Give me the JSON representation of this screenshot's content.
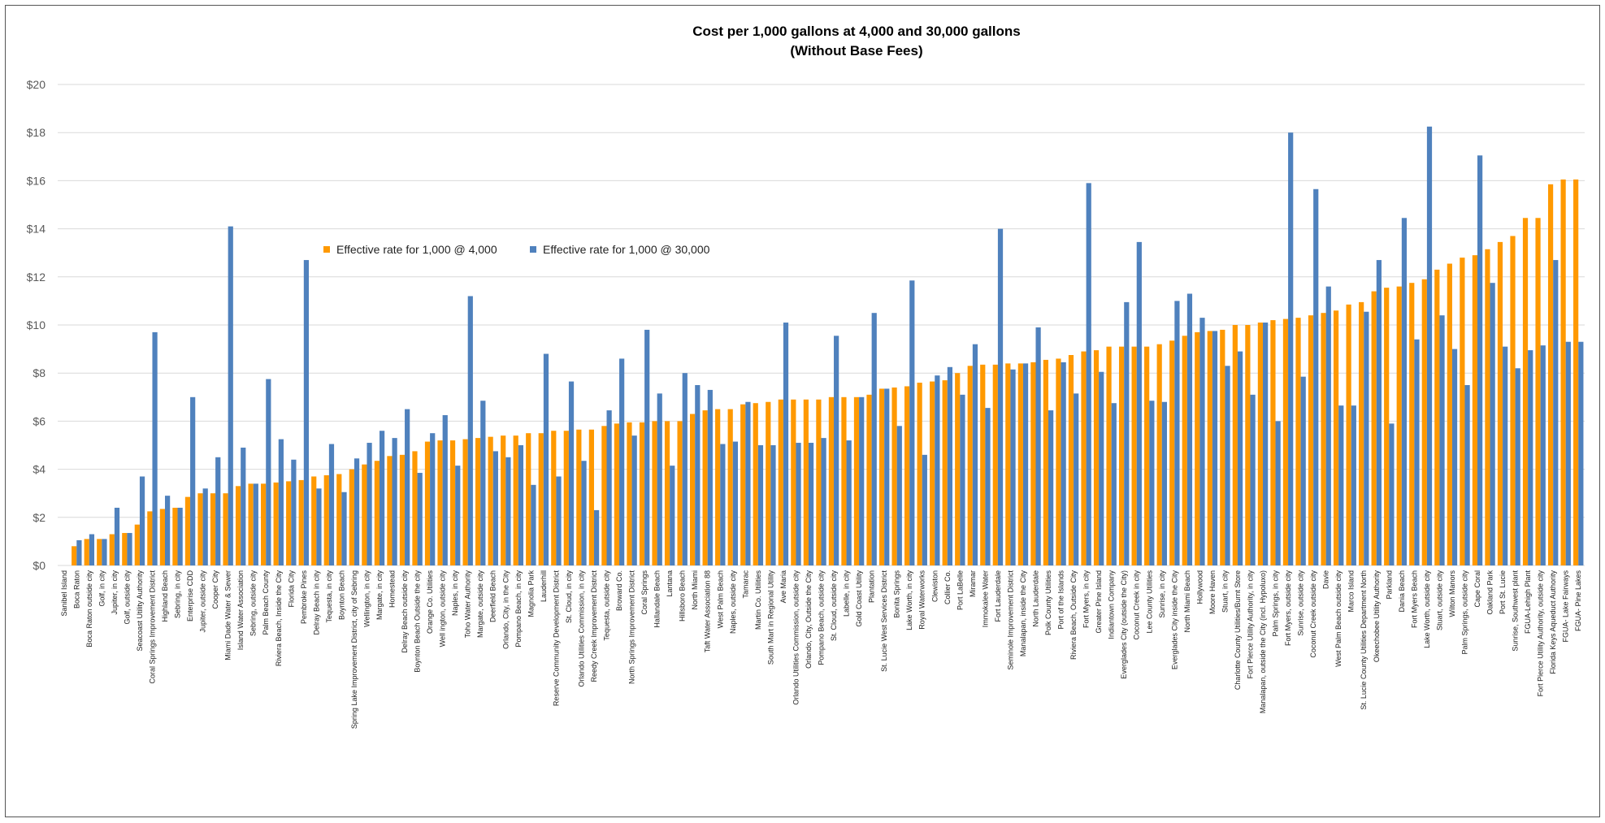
{
  "chart_data": {
    "type": "bar",
    "title": "Cost per 1,000 gallons at 4,000 and 30,000 gallons",
    "subtitle": "(Without Base Fees)",
    "xlabel": "",
    "ylabel": "",
    "ylim": [
      0,
      20
    ],
    "yticks": [
      "$0",
      "$2",
      "$4",
      "$6",
      "$8",
      "$10",
      "$12",
      "$14",
      "$16",
      "$18",
      "$20"
    ],
    "grid": true,
    "legend_position": "upper-left",
    "categories": [
      "Sanibel Island",
      "Boca Raton",
      "Boca Raton outside city",
      "Golf, in city",
      "Jupiter, in city",
      "Golf, outside city",
      "Seacoast Utility Authority",
      "Coral Springs Improvement District",
      "Highland Beach",
      "Sebring, in city",
      "Enterprise CDD",
      "Jupiter, outside city",
      "Cooper City",
      "Miami Dade Water & Sewer",
      "Island Water Association",
      "Sebring, outside city",
      "Palm Beach County",
      "Riviera Beach, Inside the City",
      "Florida City",
      "Pembroke Pines",
      "Delray Beach in city",
      "Tequesta, in city",
      "Boynton Beach",
      "Spring Lake Improvement District, city of Sebring",
      "Wellington, in city",
      "Margate, in city",
      "Homestead",
      "Delray Beach outside city",
      "Boynton Beach Outside the city",
      "Orange Co. Utilities",
      "Well ington, outside city",
      "Naples, in city",
      "Toho Water Authority",
      "Margate, outside city",
      "Deerfield Beach",
      "Orlando, City, in the City",
      "Pompano Beach, in city",
      "Magnolia Park",
      "Lauderhill",
      "Reserve Community Development District",
      "St. Cloud, in city",
      "Orlando Utilities Commission, in city",
      "Reedy Creek Improvement District",
      "Tequesta, outside city",
      "Broward Co.",
      "North Springs Improvement District",
      "Coral Springs",
      "Hallandale Beach",
      "Lantana",
      "Hillsboro Beach",
      "North Miami",
      "Taft Water Association 88",
      "West Palm Beach",
      "Naples, outside city",
      "Tamarac",
      "Martin Co. Utilities",
      "South Mart in Regional Utility",
      "Ave Maria",
      "Orlando Utilities Commission, outside city",
      "Orlando, City, Outside the City",
      "Pompano Beach, outside city",
      "St. Cloud, outside city",
      "Labelle, in city",
      "Gold Coast Utility",
      "Plantation",
      "St. Lucie West Services District",
      "Bonita Springs",
      "Lake Worth, in city",
      "Royal Waterworks",
      "Clewiston",
      "Collier Co.",
      "Port LaBelle",
      "Miramar",
      "Immokalee Water",
      "Fort Lauderdale",
      "Seminole Improvement District",
      "Manalapan, inside the City",
      "North Lauderdale",
      "Polk County Utilities",
      "Port of the Islands",
      "Riviera Beach, Outside City",
      "Fort Myers, in city",
      "Greater Pine Island",
      "Indiantown Company",
      "Everglades City (outside the City)",
      "Coconut Creek in city",
      "Lee County Utilities",
      "Sunrise, in city",
      "Everglades City inside the City",
      "North Miami Beach",
      "Hollywood",
      "Moore Haven",
      "Stuart, in city",
      "Charlotte County Utilities/Burnt Store",
      "Fort Pierce Utility Authority, in city",
      "Manalapan, outside the City (incl. Hypoluxo)",
      "Palm Springs, in city",
      "Fort Myers, outside city",
      "Sunrise, outside city",
      "Coconut Creek outside city",
      "Davie",
      "West Palm Beach outside city",
      "Marco Island",
      "St. Lucie County Utilities Department North",
      "Okeechobee Utility Authority",
      "Parkland",
      "Dania Beach",
      "Fort Myers Beach",
      "Lake Worth, outside city",
      "Stuart, outside city",
      "Wilton Manors",
      "Palm Springs, outside city",
      "Cape Coral",
      "Oakland Park",
      "Port St. Lucie",
      "Sunrise, Southwest plant",
      "FGUA-Lehigh Plant",
      "Fort Pierce Utility Authority, outside city",
      "Florida Keys Aqueduct Authority",
      "FGUA- Lake Fairways",
      "FGUA- Pine Lakes"
    ],
    "series": [
      {
        "name": "Effective rate for 1,000 @ 4,000",
        "color": "#ff9900",
        "values": [
          0.0,
          0.8,
          1.1,
          1.1,
          1.3,
          1.35,
          1.7,
          2.25,
          2.35,
          2.4,
          2.85,
          3.0,
          3.0,
          3.0,
          3.3,
          3.4,
          3.4,
          3.45,
          3.5,
          3.55,
          3.7,
          3.75,
          3.8,
          4.0,
          4.2,
          4.35,
          4.55,
          4.6,
          4.75,
          5.15,
          5.2,
          5.2,
          5.25,
          5.3,
          5.35,
          5.4,
          5.4,
          5.5,
          5.5,
          5.6,
          5.6,
          5.65,
          5.65,
          5.8,
          5.9,
          5.95,
          5.95,
          6.0,
          6.0,
          6.0,
          6.3,
          6.45,
          6.5,
          6.5,
          6.7,
          6.75,
          6.8,
          6.9,
          6.9,
          6.9,
          6.9,
          7.0,
          7.0,
          7.0,
          7.1,
          7.35,
          7.4,
          7.45,
          7.6,
          7.65,
          7.7,
          8.0,
          8.3,
          8.35,
          8.35,
          8.4,
          8.4,
          8.45,
          8.55,
          8.6,
          8.75,
          8.9,
          8.95,
          9.1,
          9.1,
          9.1,
          9.1,
          9.2,
          9.35,
          9.55,
          9.7,
          9.75,
          9.8,
          10.0,
          10.0,
          10.1,
          10.2,
          10.25,
          10.3,
          10.4,
          10.5,
          10.6,
          10.85,
          10.95,
          11.4,
          11.55,
          11.6,
          11.75,
          11.9,
          12.3,
          12.55,
          12.8,
          12.9,
          13.15,
          13.45,
          13.7,
          14.45,
          14.45,
          15.85,
          16.05,
          16.05
        ]
      },
      {
        "name": "Effective rate for 1,000 @ 30,000",
        "color": "#4f81bd",
        "values": [
          0.0,
          1.05,
          1.3,
          1.1,
          2.4,
          1.35,
          3.7,
          9.7,
          2.9,
          2.4,
          7.0,
          3.2,
          4.5,
          14.1,
          4.9,
          3.4,
          7.75,
          5.25,
          4.4,
          12.7,
          3.2,
          5.05,
          3.05,
          4.45,
          5.1,
          5.6,
          5.3,
          6.5,
          3.85,
          5.5,
          6.25,
          4.15,
          11.2,
          6.85,
          4.75,
          4.5,
          5.0,
          3.35,
          8.8,
          3.7,
          7.65,
          4.35,
          2.3,
          6.45,
          8.6,
          5.4,
          9.8,
          7.15,
          4.15,
          8.0,
          7.5,
          7.3,
          5.05,
          5.15,
          6.8,
          5.0,
          5.0,
          10.1,
          5.1,
          5.1,
          5.3,
          9.55,
          5.2,
          7.0,
          10.5,
          7.35,
          5.8,
          11.85,
          4.6,
          7.9,
          8.25,
          7.1,
          9.2,
          6.55,
          14.0,
          8.15,
          8.4,
          9.9,
          6.45,
          8.45,
          7.15,
          15.9,
          8.05,
          6.75,
          10.95,
          13.45,
          6.85,
          6.8,
          11.0,
          11.3,
          10.3,
          9.75,
          8.3,
          8.9,
          7.1,
          10.1,
          6.0,
          18.0,
          7.85,
          15.65,
          11.6,
          6.65,
          6.65,
          10.55,
          12.7,
          5.9,
          14.45,
          9.4,
          18.25,
          10.4,
          9.0,
          7.5,
          17.05,
          11.75,
          9.1,
          8.2,
          8.95,
          9.15,
          12.7,
          9.3,
          9.3
        ]
      }
    ]
  }
}
